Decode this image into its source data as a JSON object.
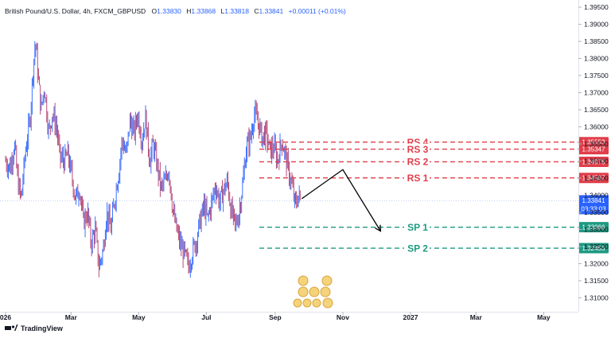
{
  "legend": {
    "symbol": "British Pound/U.S. Dollar, 4h, FXCM_GBPUSD",
    "o_label": "O",
    "o_value": "1.33830",
    "h_label": "H",
    "h_value": "1.33868",
    "l_label": "L",
    "l_value": "1.33818",
    "c_label": "C",
    "c_value": "1.33841",
    "change": "+0.00011 (+0.01%)"
  },
  "footer": {
    "brand": "TradingView"
  },
  "colors": {
    "up": "#2962ff",
    "down": "#b03a6b",
    "resistance": "#e03e4a",
    "support": "#1e9a82",
    "price_tag": "#2962ff",
    "arrow": "#000000"
  },
  "chart_data": {
    "type": "line",
    "title": "British Pound/U.S. Dollar, 4h, FXCM_GBPUSD",
    "xlabel": "",
    "ylabel": "",
    "ylim": [
      1.302,
      1.399
    ],
    "y_ticks": [
      "1.39500",
      "1.39000",
      "1.38500",
      "1.38000",
      "1.37500",
      "1.37000",
      "1.36500",
      "1.36000",
      "1.35500",
      "1.35000",
      "1.34500",
      "1.34000",
      "1.33500",
      "1.33000",
      "1.32500",
      "1.32000",
      "1.31500",
      "1.31000"
    ],
    "x_ticks": [
      {
        "label": "026",
        "date": "2026-01-01"
      },
      {
        "label": "Mar",
        "date": "2026-03-01"
      },
      {
        "label": "May",
        "date": "2026-05-01"
      },
      {
        "label": "Jul",
        "date": "2026-07-01"
      },
      {
        "label": "Sep",
        "date": "2026-09-01"
      },
      {
        "label": "Nov",
        "date": "2026-11-01"
      },
      {
        "label": "2027",
        "date": "2027-01-01"
      },
      {
        "label": "Mar",
        "date": "2027-03-01"
      },
      {
        "label": "May",
        "date": "2027-05-01"
      }
    ],
    "series": [
      {
        "values": [
          [
            "2026-01-01",
            1.35
          ],
          [
            "2026-01-05",
            1.348
          ],
          [
            "2026-01-09",
            1.355
          ],
          [
            "2026-01-12",
            1.344
          ],
          [
            "2026-01-15",
            1.339
          ],
          [
            "2026-01-19",
            1.353
          ],
          [
            "2026-01-23",
            1.362
          ],
          [
            "2026-01-26",
            1.378
          ],
          [
            "2026-01-28",
            1.385
          ],
          [
            "2026-01-30",
            1.376
          ],
          [
            "2026-02-02",
            1.365
          ],
          [
            "2026-02-05",
            1.372
          ],
          [
            "2026-02-09",
            1.358
          ],
          [
            "2026-02-12",
            1.364
          ],
          [
            "2026-02-16",
            1.36
          ],
          [
            "2026-02-19",
            1.351
          ],
          [
            "2026-02-23",
            1.35
          ],
          [
            "2026-02-26",
            1.352
          ],
          [
            "2026-03-02",
            1.345
          ],
          [
            "2026-03-05",
            1.339
          ],
          [
            "2026-03-09",
            1.342
          ],
          [
            "2026-03-12",
            1.332
          ],
          [
            "2026-03-16",
            1.335
          ],
          [
            "2026-03-19",
            1.326
          ],
          [
            "2026-03-23",
            1.33
          ],
          [
            "2026-03-26",
            1.319
          ],
          [
            "2026-03-30",
            1.324
          ],
          [
            "2026-04-02",
            1.335
          ],
          [
            "2026-04-06",
            1.33
          ],
          [
            "2026-04-09",
            1.338
          ],
          [
            "2026-04-13",
            1.347
          ],
          [
            "2026-04-16",
            1.356
          ],
          [
            "2026-04-20",
            1.352
          ],
          [
            "2026-04-23",
            1.362
          ],
          [
            "2026-04-27",
            1.358
          ],
          [
            "2026-04-30",
            1.364
          ],
          [
            "2026-05-04",
            1.356
          ],
          [
            "2026-05-07",
            1.363
          ],
          [
            "2026-05-11",
            1.35
          ],
          [
            "2026-05-14",
            1.355
          ],
          [
            "2026-05-18",
            1.348
          ],
          [
            "2026-05-21",
            1.342
          ],
          [
            "2026-05-25",
            1.344
          ],
          [
            "2026-05-28",
            1.348
          ],
          [
            "2026-06-01",
            1.335
          ],
          [
            "2026-06-04",
            1.33
          ],
          [
            "2026-06-08",
            1.325
          ],
          [
            "2026-06-11",
            1.323
          ],
          [
            "2026-06-15",
            1.319
          ],
          [
            "2026-06-18",
            1.323
          ],
          [
            "2026-06-22",
            1.327
          ],
          [
            "2026-06-25",
            1.332
          ],
          [
            "2026-06-29",
            1.337
          ],
          [
            "2026-07-02",
            1.333
          ],
          [
            "2026-07-06",
            1.338
          ],
          [
            "2026-07-09",
            1.343
          ],
          [
            "2026-07-13",
            1.338
          ],
          [
            "2026-07-16",
            1.341
          ],
          [
            "2026-07-20",
            1.344
          ],
          [
            "2026-07-23",
            1.336
          ],
          [
            "2026-07-27",
            1.331
          ],
          [
            "2026-07-30",
            1.334
          ],
          [
            "2026-08-03",
            1.344
          ],
          [
            "2026-08-06",
            1.354
          ],
          [
            "2026-08-10",
            1.357
          ],
          [
            "2026-08-13",
            1.364
          ],
          [
            "2026-08-17",
            1.361
          ],
          [
            "2026-08-20",
            1.357
          ],
          [
            "2026-08-24",
            1.358
          ],
          [
            "2026-08-27",
            1.353
          ],
          [
            "2026-08-31",
            1.354
          ],
          [
            "2026-09-03",
            1.35
          ],
          [
            "2026-09-07",
            1.356
          ],
          [
            "2026-09-10",
            1.352
          ],
          [
            "2026-09-13",
            1.347
          ],
          [
            "2026-09-16",
            1.343
          ],
          [
            "2026-09-19",
            1.337
          ],
          [
            "2026-09-22",
            1.34
          ],
          [
            "2026-09-24",
            1.3384
          ]
        ]
      }
    ],
    "levels": [
      {
        "label": "RS 4",
        "value": 1.35553,
        "tag": "1.35553",
        "kind": "resistance"
      },
      {
        "label": "RS 3",
        "value": 1.35347,
        "tag": "1.35347",
        "kind": "resistance"
      },
      {
        "label": "RS 2",
        "value": 1.34978,
        "tag": "1.34978",
        "kind": "resistance"
      },
      {
        "label": "RS 1",
        "value": 1.34507,
        "tag": "1.34507",
        "kind": "resistance"
      },
      {
        "label": "SP 1",
        "value": 1.33066,
        "tag": "1.33066",
        "kind": "support"
      },
      {
        "label": "SP 2",
        "value": 1.32453,
        "tag": "1.32453",
        "kind": "support"
      }
    ],
    "current_price": {
      "value": 1.33841,
      "tag": "1.33841",
      "countdown": "03:33:03"
    },
    "projection": [
      [
        "2026-09-25",
        1.339
      ],
      [
        "2026-11-01",
        1.3475
      ],
      [
        "2026-12-05",
        1.3295
      ]
    ],
    "grid": false,
    "legend_position": "top-left"
  }
}
